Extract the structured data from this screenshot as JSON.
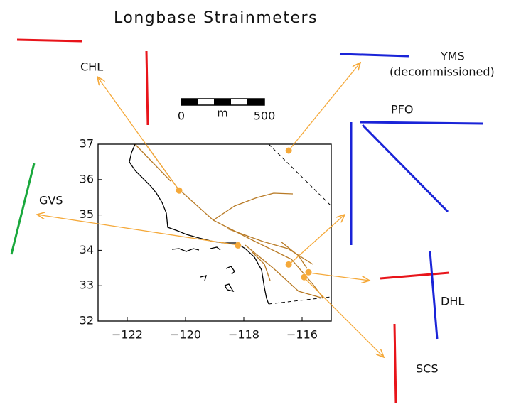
{
  "title": "Longbase Strainmeters",
  "scale_bar": {
    "min": 0,
    "max": 500,
    "unit": "m"
  },
  "map": {
    "xlim": [
      -123,
      -115
    ],
    "ylim": [
      32,
      37
    ],
    "xticks": [
      {
        "value": -122,
        "label": "−122"
      },
      {
        "value": -120,
        "label": "−120"
      },
      {
        "value": -118,
        "label": "−118"
      },
      {
        "value": -116,
        "label": "−116"
      }
    ],
    "yticks": [
      32,
      33,
      34,
      35,
      36,
      37
    ]
  },
  "stations": [
    {
      "name": "CHL",
      "lon": -120.22,
      "lat": 35.69
    },
    {
      "name": "GVS",
      "lon": -118.2,
      "lat": 34.14
    },
    {
      "name": "YMS",
      "note": "(decommissioned)",
      "lon": -116.46,
      "lat": 36.82
    },
    {
      "name": "PFO",
      "lon": -116.46,
      "lat": 33.6
    },
    {
      "name": "DHL",
      "lon": -115.78,
      "lat": 33.38
    },
    {
      "name": "SCS",
      "lon": -115.93,
      "lat": 33.24
    }
  ]
}
